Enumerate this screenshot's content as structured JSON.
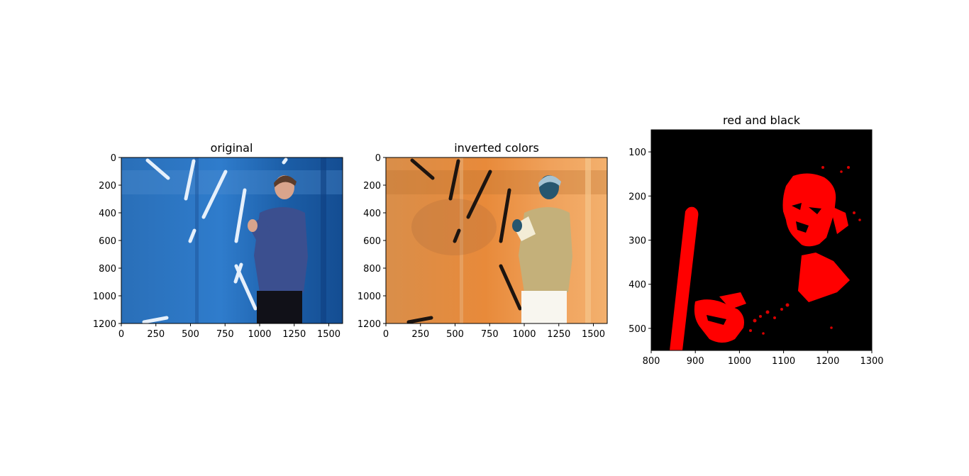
{
  "chart_data": [
    {
      "type": "image",
      "title": "original",
      "xlabel": "",
      "ylabel": "",
      "xlim": [
        0,
        1600
      ],
      "ylim": [
        1200,
        0
      ],
      "xticks": [
        0,
        250,
        500,
        750,
        1000,
        1250,
        1500
      ],
      "yticks": [
        0,
        200,
        400,
        600,
        800,
        1000,
        1200
      ],
      "image": "photo of a man on stage clapping in front of a blue backdrop with white light streaks"
    },
    {
      "type": "image",
      "title": "inverted colors",
      "xlabel": "",
      "ylabel": "",
      "xlim": [
        0,
        1600
      ],
      "ylim": [
        1200,
        0
      ],
      "xticks": [
        0,
        250,
        500,
        750,
        1000,
        1250,
        1500
      ],
      "yticks": [
        0,
        200,
        400,
        600,
        800,
        1000,
        1200
      ],
      "image": "color-inverted photo: orange backdrop, dark streaks, pale figure"
    },
    {
      "type": "image",
      "title": "red and black",
      "xlabel": "",
      "ylabel": "",
      "xlim": [
        800,
        1300
      ],
      "ylim": [
        550,
        50
      ],
      "xticks": [
        800,
        900,
        1000,
        1100,
        1200,
        1300
      ],
      "yticks": [
        100,
        200,
        300,
        400,
        500
      ],
      "image": "cropped thresholded image in red and black showing the face and hands"
    }
  ],
  "colors": {
    "background": "#ffffff",
    "blue_backdrop": "#1f5fa8",
    "orange_backdrop": "#f0955a",
    "threshold_red": "#ff0000",
    "threshold_black": "#000000"
  }
}
